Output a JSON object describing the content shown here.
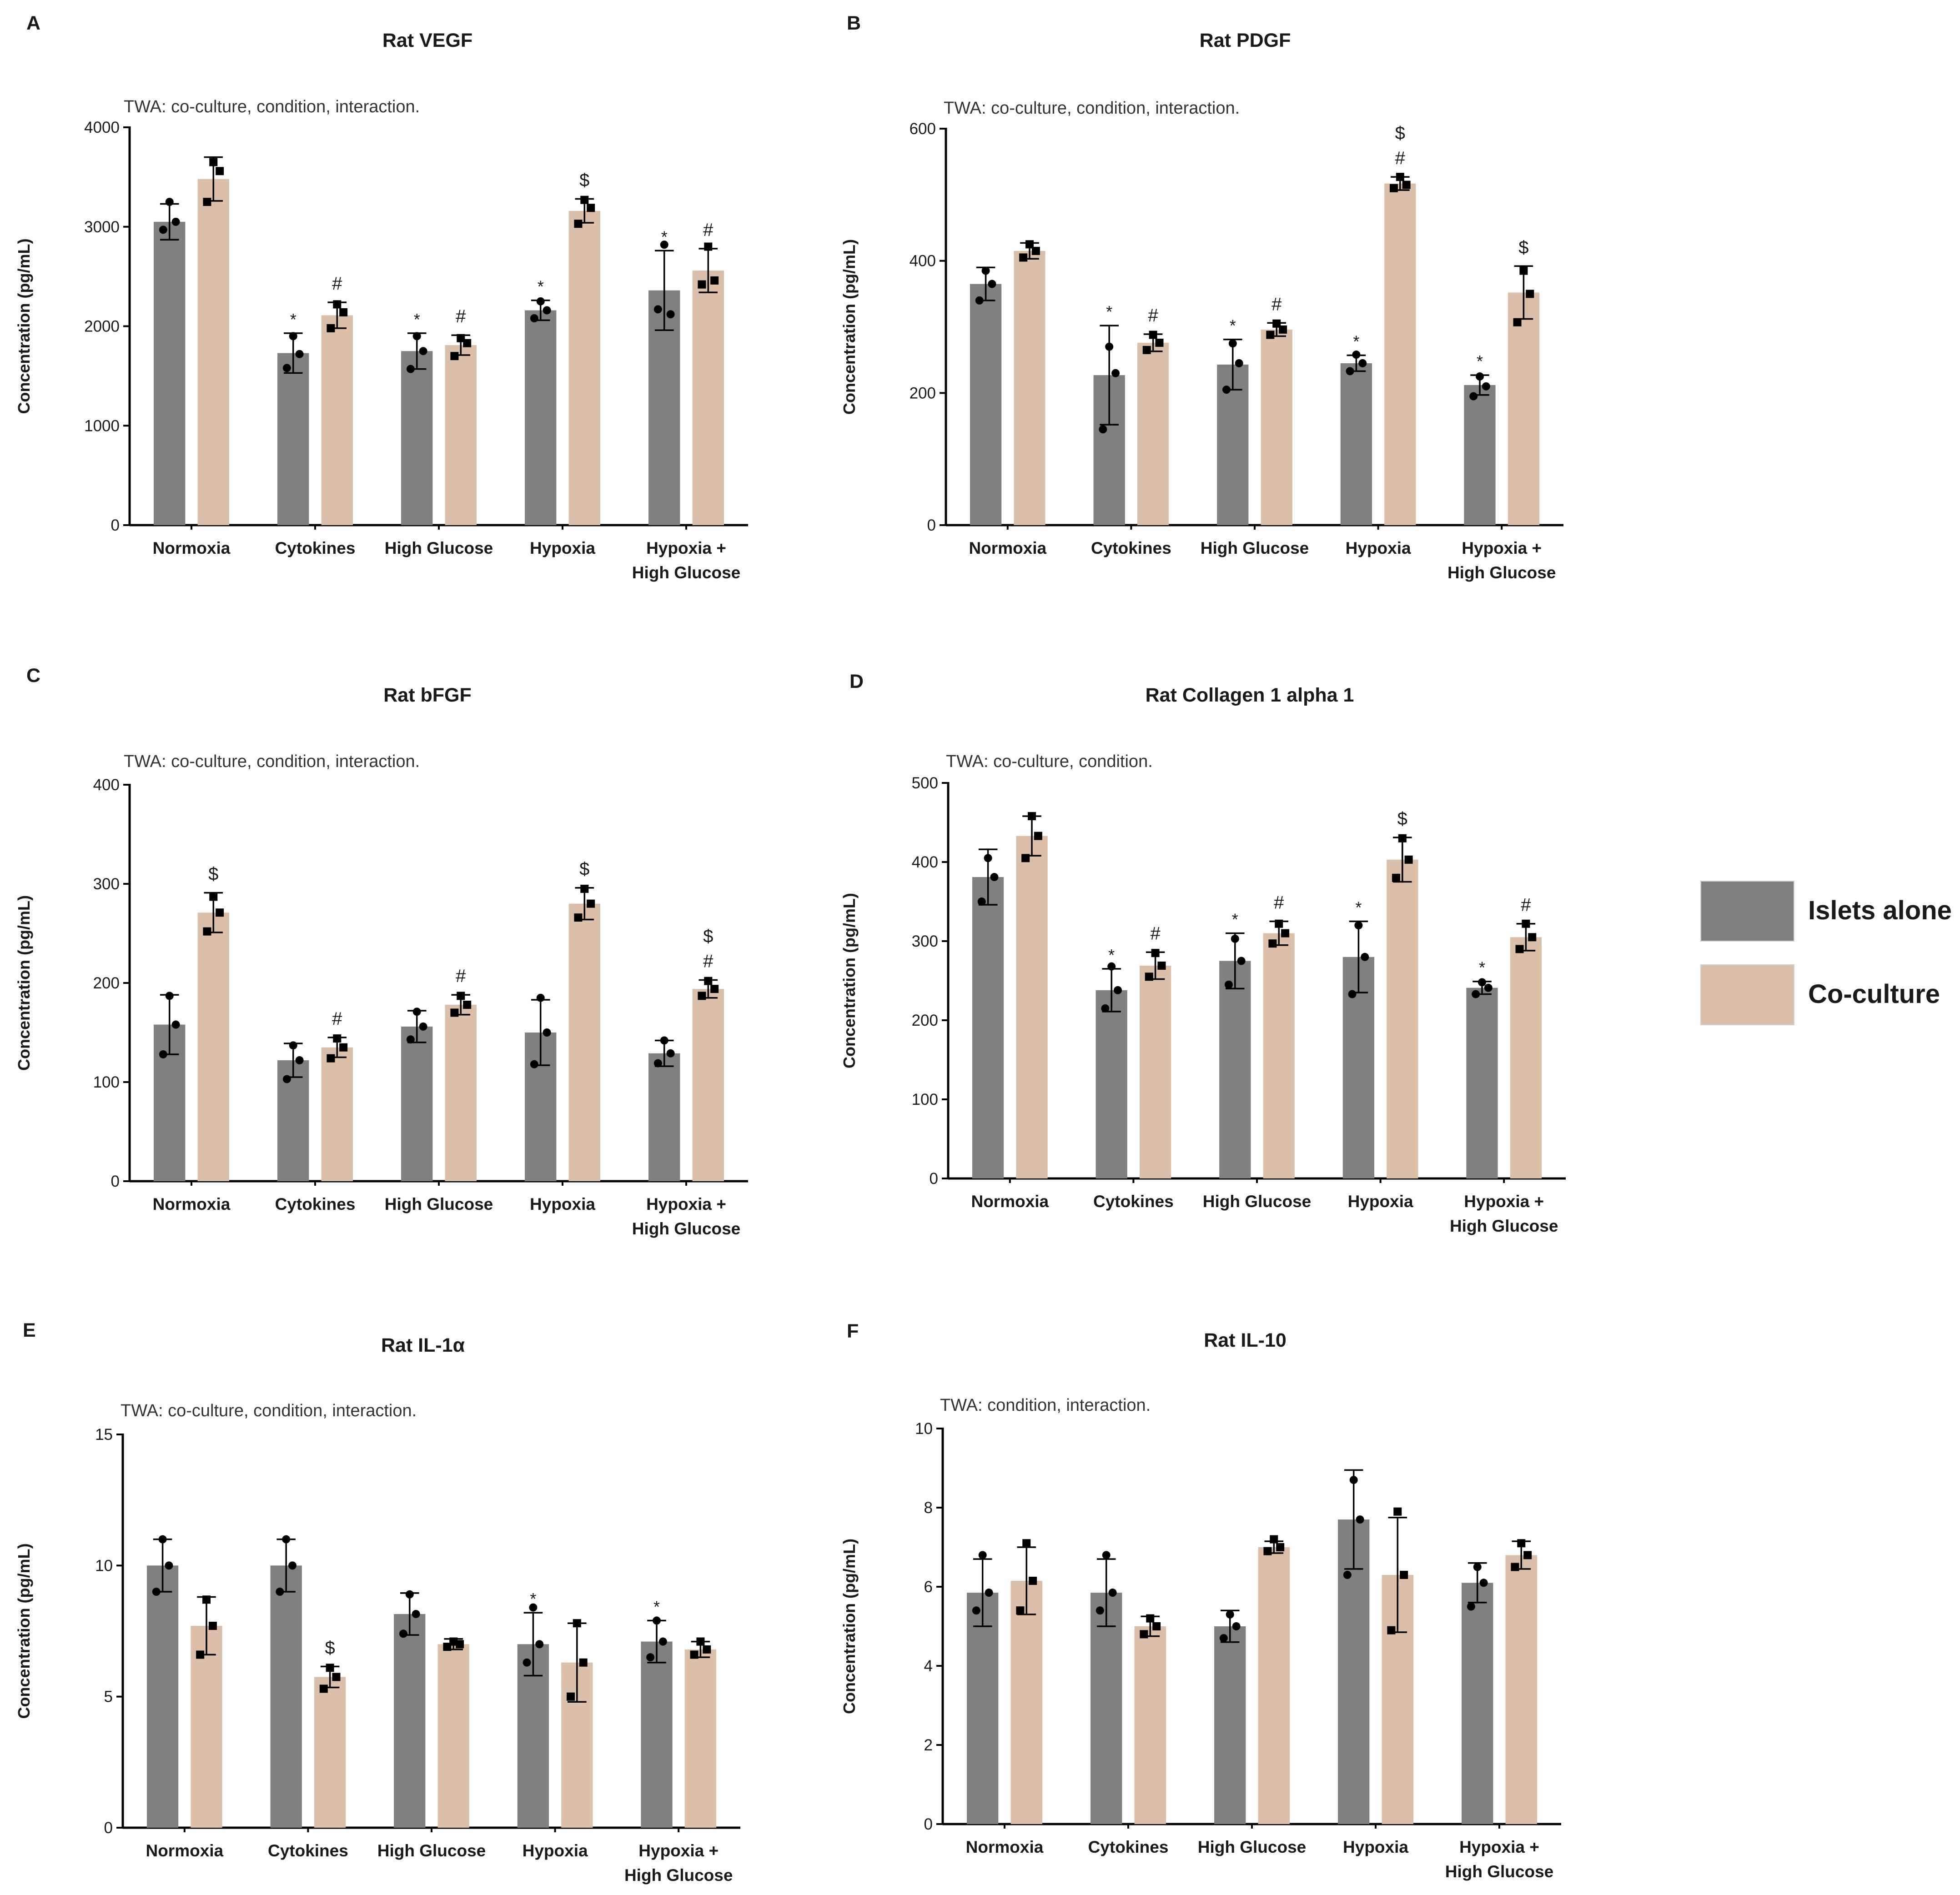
{
  "colors": {
    "islets_alone": "#808080",
    "co_culture": "#dcbfa8",
    "points": "#000000"
  },
  "legend": [
    {
      "name": "Islets alone",
      "color": "#808080"
    },
    {
      "name": "Co-culture",
      "color": "#dcbfa8"
    }
  ],
  "chart_data": [
    {
      "panel": "A",
      "type": "bar",
      "title": "Rat VEGF",
      "note": "TWA: co-culture, condition, interaction.",
      "ylabel": "Concentration (pg/mL)",
      "ylim": [
        0,
        4000
      ],
      "yticks": [
        "0",
        "1000",
        "2000",
        "3000",
        "4000"
      ],
      "categories": [
        "Normoxia",
        "Cytokines",
        "High Glucose",
        "Hypoxia",
        "Hypoxia + High Glucose"
      ],
      "series": [
        {
          "name": "Islets alone",
          "values": [
            3050,
            1730,
            1750,
            2160,
            2360
          ],
          "errors": [
            180,
            200,
            180,
            100,
            400
          ],
          "points": [
            [
              2970,
              3250,
              3050
            ],
            [
              1580,
              1900,
              1720
            ],
            [
              1570,
              1900,
              1750
            ],
            [
              2080,
              2250,
              2160
            ],
            [
              2170,
              2820,
              2120
            ]
          ],
          "sig": [
            "",
            "*",
            "*",
            "*",
            "*"
          ]
        },
        {
          "name": "Co-culture",
          "values": [
            3480,
            2110,
            1810,
            3160,
            2560
          ],
          "errors": [
            220,
            130,
            100,
            120,
            220
          ],
          "points": [
            [
              3250,
              3650,
              3560
            ],
            [
              1980,
              2220,
              2140
            ],
            [
              1700,
              1880,
              1830
            ],
            [
              3030,
              3270,
              3190
            ],
            [
              2420,
              2800,
              2460
            ]
          ],
          "sig": [
            "",
            "#",
            "#",
            "$",
            "#"
          ]
        }
      ]
    },
    {
      "panel": "B",
      "type": "bar",
      "title": "Rat PDGF",
      "note": "TWA: co-culture, condition, interaction.",
      "ylabel": "Concentration (pg/mL)",
      "ylim": [
        0,
        600
      ],
      "yticks": [
        "0",
        "200",
        "400",
        "600"
      ],
      "categories": [
        "Normoxia",
        "Cytokines",
        "High Glucose",
        "Hypoxia",
        "Hypoxia + High Glucose"
      ],
      "series": [
        {
          "name": "Islets alone",
          "values": [
            365,
            227,
            243,
            245,
            212
          ],
          "errors": [
            25,
            75,
            38,
            12,
            15
          ],
          "points": [
            [
              340,
              385,
              365
            ],
            [
              145,
              270,
              230
            ],
            [
              205,
              275,
              245
            ],
            [
              233,
              258,
              245
            ],
            [
              195,
              225,
              210
            ]
          ],
          "sig": [
            "",
            "*",
            "*",
            "*",
            "*"
          ]
        },
        {
          "name": "Co-culture",
          "values": [
            415,
            276,
            296,
            517,
            352
          ],
          "errors": [
            12,
            13,
            10,
            10,
            40
          ],
          "points": [
            [
              405,
              425,
              415
            ],
            [
              265,
              288,
              276
            ],
            [
              288,
              305,
              296
            ],
            [
              510,
              527,
              515
            ],
            [
              307,
              385,
              350
            ]
          ],
          "sig": [
            "",
            "#",
            "#",
            "$ #",
            "$"
          ]
        }
      ]
    },
    {
      "panel": "C",
      "type": "bar",
      "title": "Rat bFGF",
      "note": "TWA: co-culture, condition, interaction.",
      "ylabel": "Concentration (pg/mL)",
      "ylim": [
        0,
        400
      ],
      "yticks": [
        "0",
        "100",
        "200",
        "300",
        "400"
      ],
      "categories": [
        "Normoxia",
        "Cytokines",
        "High Glucose",
        "Hypoxia",
        "Hypoxia + High Glucose"
      ],
      "series": [
        {
          "name": "Islets alone",
          "values": [
            158,
            122,
            156,
            150,
            129
          ],
          "errors": [
            30,
            17,
            16,
            33,
            13
          ],
          "points": [
            [
              128,
              187,
              158
            ],
            [
              103,
              137,
              122
            ],
            [
              143,
              171,
              156
            ],
            [
              118,
              185,
              150
            ],
            [
              119,
              142,
              129
            ]
          ],
          "sig": [
            "",
            "",
            "",
            "",
            ""
          ]
        },
        {
          "name": "Co-culture",
          "values": [
            271,
            135,
            178,
            280,
            194
          ],
          "errors": [
            20,
            10,
            10,
            16,
            9
          ],
          "points": [
            [
              252,
              287,
              271
            ],
            [
              124,
              144,
              135
            ],
            [
              170,
              187,
              178
            ],
            [
              266,
              295,
              280
            ],
            [
              187,
              202,
              194
            ]
          ],
          "sig": [
            "$",
            "#",
            "#",
            "$",
            "$ #"
          ]
        }
      ]
    },
    {
      "panel": "D",
      "type": "bar",
      "title": "Rat Collagen 1 alpha 1",
      "note": "TWA: co-culture, condition.",
      "ylabel": "Concentration (pg/mL)",
      "ylim": [
        0,
        500
      ],
      "yticks": [
        "0",
        "100",
        "200",
        "300",
        "400",
        "500"
      ],
      "categories": [
        "Normoxia",
        "Cytokines",
        "High Glucose",
        "Hypoxia",
        "Hypoxia + High Glucose"
      ],
      "series": [
        {
          "name": "Islets alone",
          "values": [
            381,
            238,
            275,
            280,
            241
          ],
          "errors": [
            35,
            27,
            35,
            45,
            8
          ],
          "points": [
            [
              350,
              405,
              381
            ],
            [
              215,
              268,
              238
            ],
            [
              245,
              303,
              275
            ],
            [
              233,
              320,
              280
            ],
            [
              233,
              248,
              241
            ]
          ],
          "sig": [
            "",
            "*",
            "*",
            "*",
            "*"
          ]
        },
        {
          "name": "Co-culture",
          "values": [
            433,
            269,
            310,
            403,
            305
          ],
          "errors": [
            25,
            17,
            15,
            28,
            17
          ],
          "points": [
            [
              405,
              458,
              433
            ],
            [
              255,
              285,
              269
            ],
            [
              297,
              322,
              310
            ],
            [
              380,
              430,
              403
            ],
            [
              290,
              322,
              305
            ]
          ],
          "sig": [
            "",
            "#",
            "#",
            "$",
            "#"
          ]
        }
      ]
    },
    {
      "panel": "E",
      "type": "bar",
      "title": "Rat IL-1α",
      "note": "TWA: co-culture, condition, interaction.",
      "ylabel": "Concentration (pg/mL)",
      "ylim": [
        0,
        15
      ],
      "yticks": [
        "0",
        "5",
        "10",
        "15"
      ],
      "categories": [
        "Normoxia",
        "Cytokines",
        "High Glucose",
        "Hypoxia",
        "Hypoxia + High Glucose"
      ],
      "series": [
        {
          "name": "Islets alone",
          "values": [
            10,
            10,
            8.15,
            7,
            7.1
          ],
          "errors": [
            1,
            1,
            0.8,
            1.2,
            0.8
          ],
          "points": [
            [
              9,
              11,
              10
            ],
            [
              9,
              11,
              10
            ],
            [
              7.4,
              8.9,
              8.15
            ],
            [
              6.3,
              8.4,
              7
            ],
            [
              6.5,
              7.9,
              7.1
            ]
          ],
          "sig": [
            "",
            "",
            "",
            "*",
            "*"
          ]
        },
        {
          "name": "Co-culture",
          "values": [
            7.7,
            5.75,
            7,
            6.3,
            6.8
          ],
          "errors": [
            1.1,
            0.4,
            0.2,
            1.5,
            0.3
          ],
          "points": [
            [
              6.6,
              8.7,
              7.7
            ],
            [
              5.3,
              6.1,
              5.75
            ],
            [
              6.9,
              7.1,
              7
            ],
            [
              5,
              7.8,
              6.3
            ],
            [
              6.6,
              7.1,
              6.8
            ]
          ],
          "sig": [
            "",
            "$",
            "",
            "",
            ""
          ]
        }
      ]
    },
    {
      "panel": "F",
      "type": "bar",
      "title": "Rat IL-10",
      "note": "TWA: condition, interaction.",
      "ylabel": "Concentration (pg/mL)",
      "ylim": [
        0,
        10
      ],
      "yticks": [
        "0",
        "2",
        "4",
        "6",
        "8",
        "10"
      ],
      "categories": [
        "Normoxia",
        "Cytokines",
        "High Glucose",
        "Hypoxia",
        "Hypoxia + High Glucose"
      ],
      "series": [
        {
          "name": "Islets alone",
          "values": [
            5.85,
            5.85,
            5,
            7.7,
            6.1
          ],
          "errors": [
            0.85,
            0.85,
            0.4,
            1.25,
            0.5
          ],
          "points": [
            [
              5.4,
              6.8,
              5.85
            ],
            [
              5.4,
              6.8,
              5.85
            ],
            [
              4.7,
              5.3,
              5
            ],
            [
              6.3,
              8.7,
              7.7
            ],
            [
              5.5,
              6.5,
              6.1
            ]
          ],
          "sig": [
            "",
            "",
            "",
            "",
            ""
          ]
        },
        {
          "name": "Co-culture",
          "values": [
            6.15,
            5,
            7,
            6.3,
            6.8
          ],
          "errors": [
            0.85,
            0.25,
            0.15,
            1.45,
            0.35
          ],
          "points": [
            [
              5.4,
              7.1,
              6.15
            ],
            [
              4.8,
              5.2,
              5
            ],
            [
              6.9,
              7.2,
              7
            ],
            [
              4.9,
              7.9,
              6.3
            ],
            [
              6.5,
              7.1,
              6.8
            ]
          ],
          "sig": [
            "",
            "",
            "",
            "",
            ""
          ]
        }
      ]
    }
  ]
}
